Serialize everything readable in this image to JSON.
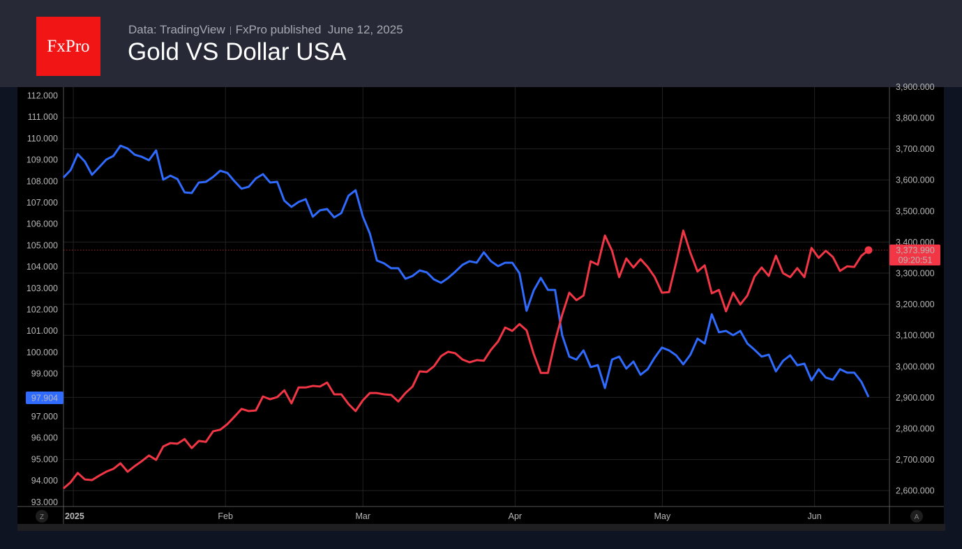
{
  "header": {
    "logo_text": "FxPro",
    "source": "Data: TradingView",
    "publisher": "FxPro published",
    "date": "June 12, 2025",
    "title": "Gold VS Dollar USA"
  },
  "colors": {
    "dollar": "#2f6bff",
    "gold": "#f23645",
    "background": "#000000",
    "header": "#272a36",
    "logo": "#f21515"
  },
  "chart_data": {
    "type": "line",
    "title": "Gold VS Dollar USA",
    "x_range": [
      "2024-12-30",
      "2025-06-12"
    ],
    "x_tick_labels": [
      "2025",
      "Feb",
      "Mar",
      "Apr",
      "May",
      "Jun"
    ],
    "grid": true,
    "left_axis": {
      "ylim": [
        92.9,
        112.4
      ],
      "tick_labels": [
        "112.000",
        "111.000",
        "110.000",
        "109.000",
        "108.000",
        "107.000",
        "106.000",
        "105.000",
        "104.000",
        "103.000",
        "102.000",
        "101.000",
        "100.000",
        "99.000",
        "97.000",
        "96.000",
        "95.000",
        "94.000",
        "93.000"
      ],
      "last_value_label": "97.904"
    },
    "right_axis": {
      "ylim": [
        2550,
        3900
      ],
      "tick_labels": [
        "3,900.000",
        "3,800.000",
        "3,700.000",
        "3,600.000",
        "3,500.000",
        "3,400.000",
        "3,300.000",
        "3,200.000",
        "3,100.000",
        "3,000.000",
        "2,900.000",
        "2,800.000",
        "2,700.000",
        "2,600.000"
      ],
      "last_value_label": "3,373.990",
      "countdown_label": "09:20:51"
    },
    "corner_buttons": [
      "Z",
      "A"
    ],
    "series": [
      {
        "axis": "left",
        "color": "#2f6bff",
        "values": [
          108.16,
          108.51,
          109.26,
          108.91,
          108.29,
          108.64,
          109.0,
          109.17,
          109.65,
          109.52,
          109.23,
          109.13,
          108.97,
          109.43,
          108.06,
          108.25,
          108.09,
          107.47,
          107.44,
          107.93,
          107.96,
          108.19,
          108.48,
          108.38,
          107.99,
          107.64,
          107.73,
          108.12,
          108.32,
          107.93,
          107.96,
          107.08,
          106.79,
          107.02,
          107.15,
          106.33,
          106.63,
          106.69,
          106.3,
          106.5,
          107.31,
          107.57,
          106.36,
          105.55,
          104.28,
          104.15,
          103.92,
          103.92,
          103.43,
          103.56,
          103.82,
          103.73,
          103.4,
          103.24,
          103.47,
          103.76,
          104.08,
          104.25,
          104.18,
          104.67,
          104.25,
          104.02,
          104.18,
          104.18,
          103.69,
          101.93,
          102.88,
          103.47,
          102.91,
          102.91,
          100.79,
          99.79,
          99.65,
          100.08,
          99.3,
          99.39,
          98.32,
          99.65,
          99.79,
          99.23,
          99.56,
          98.94,
          99.2,
          99.75,
          100.21,
          100.08,
          99.85,
          99.43,
          99.88,
          100.63,
          100.4,
          101.77,
          100.93,
          100.99,
          100.79,
          100.99,
          100.4,
          100.11,
          99.79,
          99.88,
          99.1,
          99.59,
          99.85,
          99.39,
          99.46,
          98.68,
          99.2,
          98.81,
          98.71,
          99.2,
          99.04,
          99.04,
          98.61,
          97.904
        ]
      },
      {
        "axis": "right",
        "color": "#f23645",
        "values": [
          2607,
          2627,
          2657,
          2636,
          2634,
          2648,
          2661,
          2670,
          2688,
          2661,
          2679,
          2695,
          2713,
          2699,
          2742,
          2753,
          2751,
          2766,
          2737,
          2760,
          2757,
          2791,
          2796,
          2814,
          2838,
          2863,
          2856,
          2858,
          2903,
          2894,
          2901,
          2923,
          2881,
          2932,
          2932,
          2937,
          2935,
          2948,
          2910,
          2910,
          2879,
          2856,
          2890,
          2914,
          2914,
          2910,
          2908,
          2887,
          2914,
          2935,
          2984,
          2982,
          3000,
          3033,
          3047,
          3042,
          3022,
          3013,
          3020,
          3018,
          3053,
          3080,
          3125,
          3114,
          3136,
          3116,
          3040,
          2979,
          2979,
          3080,
          3166,
          3237,
          3213,
          3228,
          3338,
          3327,
          3421,
          3372,
          3287,
          3347,
          3318,
          3345,
          3320,
          3287,
          3237,
          3239,
          3334,
          3437,
          3365,
          3305,
          3325,
          3235,
          3246,
          3177,
          3237,
          3199,
          3228,
          3289,
          3318,
          3291,
          3356,
          3300,
          3287,
          3316,
          3287,
          3381,
          3349,
          3372,
          3352,
          3307,
          3322,
          3320,
          3356,
          3373.99
        ]
      }
    ]
  }
}
